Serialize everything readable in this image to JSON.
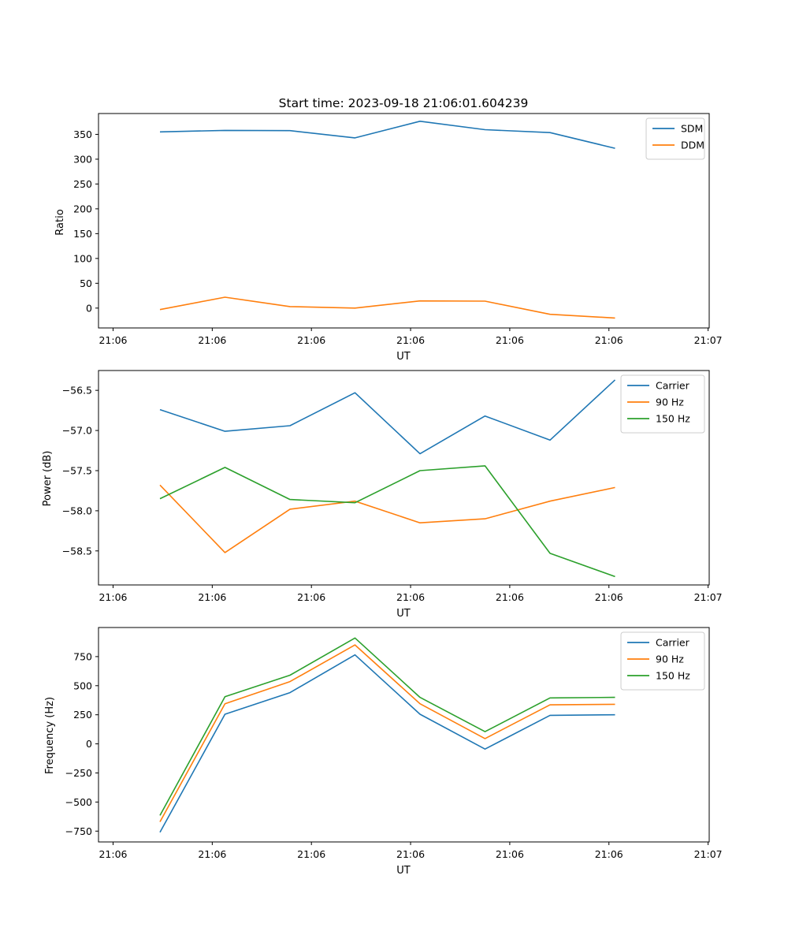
{
  "chart_data": [
    {
      "type": "line",
      "title": "Start time: 2023-09-18 21:06:01.604239",
      "xlabel": "UT",
      "ylabel": "Ratio",
      "x_tick_labels": [
        "21:06",
        "21:06",
        "21:06",
        "21:06",
        "21:06",
        "21:06",
        "21:07"
      ],
      "yticks": [
        0,
        50,
        100,
        150,
        200,
        250,
        300,
        350
      ],
      "ylim": [
        -40,
        392
      ],
      "legend": "top-right",
      "series": [
        {
          "name": "SDM",
          "color": "#1f77b4",
          "values": [
            355,
            358,
            357.5,
            343,
            376.5,
            359.5,
            353.5,
            322
          ]
        },
        {
          "name": "DDM",
          "color": "#ff7f0e",
          "values": [
            -3,
            22,
            3,
            0,
            14.5,
            14,
            -12.5,
            -20
          ]
        }
      ]
    },
    {
      "type": "line",
      "title": "",
      "xlabel": "UT",
      "ylabel": "Power (dB)",
      "x_tick_labels": [
        "21:06",
        "21:06",
        "21:06",
        "21:06",
        "21:06",
        "21:06",
        "21:07"
      ],
      "yticks": [
        -58.5,
        -58.0,
        -57.5,
        -57.0,
        -56.5
      ],
      "ytick_labels": [
        "−58.5",
        "−58.0",
        "−57.5",
        "−57.0",
        "−56.5"
      ],
      "ylim": [
        -58.924,
        -56.253
      ],
      "legend": "top-right",
      "series": [
        {
          "name": "Carrier",
          "color": "#1f77b4",
          "values": [
            -56.74,
            -57.01,
            -56.94,
            -56.53,
            -57.29,
            -56.82,
            -57.12,
            -56.37
          ]
        },
        {
          "name": "90 Hz",
          "color": "#ff7f0e",
          "values": [
            -57.68,
            -58.52,
            -57.98,
            -57.88,
            -58.15,
            -58.1,
            -57.88,
            -57.71
          ]
        },
        {
          "name": "150 Hz",
          "color": "#2ca02c",
          "values": [
            -57.85,
            -57.46,
            -57.86,
            -57.9,
            -57.5,
            -57.44,
            -58.53,
            -58.82
          ]
        }
      ]
    },
    {
      "type": "line",
      "title": "",
      "xlabel": "UT",
      "ylabel": "Frequency (Hz)",
      "x_tick_labels": [
        "21:06",
        "21:06",
        "21:06",
        "21:06",
        "21:06",
        "21:06",
        "21:07"
      ],
      "yticks": [
        -750,
        -500,
        -250,
        0,
        250,
        500,
        750
      ],
      "ytick_labels": [
        "−750",
        "−500",
        "−250",
        "0",
        "250",
        "500",
        "750"
      ],
      "ylim": [
        -843,
        1000
      ],
      "legend": "top-right",
      "series": [
        {
          "name": "Carrier",
          "color": "#1f77b4",
          "values": [
            -760,
            255,
            440,
            765,
            255,
            -45,
            245,
            250
          ]
        },
        {
          "name": "90 Hz",
          "color": "#ff7f0e",
          "values": [
            -670,
            345,
            535,
            850,
            345,
            45,
            335,
            340
          ]
        },
        {
          "name": "150 Hz",
          "color": "#2ca02c",
          "values": [
            -615,
            405,
            590,
            910,
            400,
            105,
            395,
            400
          ]
        }
      ]
    }
  ]
}
